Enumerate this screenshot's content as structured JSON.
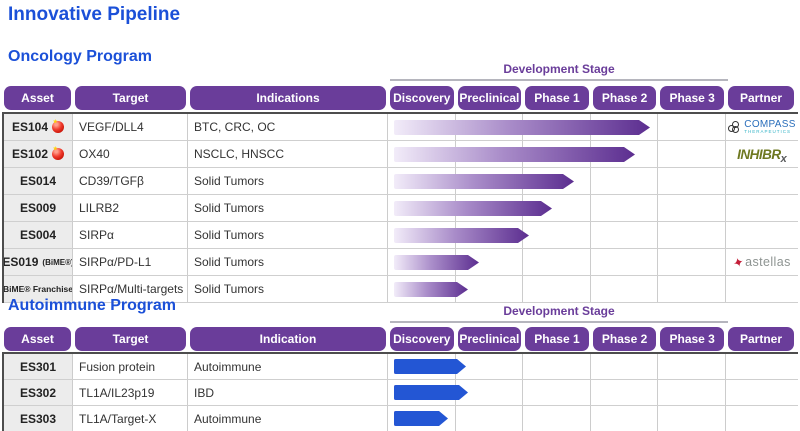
{
  "title": "Innovative Pipeline",
  "colors": {
    "header_purple": "#6a3d9a",
    "title_blue": "#1b50d8",
    "oncology_bar_dark": "#5c2e90",
    "autoimmune_bar_blue": "#2356d4",
    "flag_red": "#e02b1d"
  },
  "stage_unit_note": "progress measured in stage columns from Discovery start: 1=end of Discovery, 2=end of Preclinical, 3=end of Phase 1, 4=end of Phase 2, 5=end of Phase 3",
  "oncology": {
    "section_title": "Oncology Program",
    "dev_stage_label": "Development Stage",
    "info_columns": [
      "Asset",
      "Target",
      "Indications"
    ],
    "stage_columns": [
      "Discovery",
      "Preclinical",
      "Phase 1",
      "Phase 2",
      "Phase 3"
    ],
    "partner_column": "Partner",
    "rows": [
      {
        "asset": "ES104",
        "flag": true,
        "target": "VEGF/DLL4",
        "indication": "BTC, CRC, OC",
        "progress": 3.84,
        "partner": "compass"
      },
      {
        "asset": "ES102",
        "flag": true,
        "target": "OX40",
        "indication": "NSCLC, HNSCC",
        "progress": 3.62,
        "partner": ""
      },
      {
        "asset": "ES014",
        "target": "CD39/TGFβ",
        "indication": "Solid Tumors",
        "progress": 2.72,
        "partner": ""
      },
      {
        "asset": "ES009",
        "target": "LILRB2",
        "indication": "Solid Tumors",
        "progress": 2.39,
        "partner": ""
      },
      {
        "asset": "ES004",
        "target": "SIRPα",
        "indication": "Solid Tumors",
        "progress": 2.06,
        "partner": ""
      },
      {
        "asset": "ES019",
        "asset_note": "(BiME®)",
        "target": "SIRPα/PD-L1",
        "indication": "Solid Tumors",
        "progress": 1.31,
        "partner": "astellas"
      },
      {
        "asset": "BiME® Franchise",
        "small": true,
        "target": "SIRPα/Multi-targets",
        "indication": "Solid Tumors",
        "progress": 1.16,
        "partner": ""
      }
    ],
    "inhibrx_row_index": 1
  },
  "autoimmune": {
    "section_title": "Autoimmune Program",
    "dev_stage_label": "Development Stage",
    "info_columns": [
      "Asset",
      "Target",
      "Indication"
    ],
    "stage_columns": [
      "Discovery",
      "Preclinical",
      "Phase 1",
      "Phase 2",
      "Phase 3"
    ],
    "partner_column": "Partner",
    "rows": [
      {
        "asset": "ES301",
        "target": "Fusion protein",
        "indication": "Autoimmune",
        "progress": 1.13,
        "partner": ""
      },
      {
        "asset": "ES302",
        "target": "TL1A/IL23p19",
        "indication": "IBD",
        "progress": 1.16,
        "partner": ""
      },
      {
        "asset": "ES303",
        "target": "TL1A/Target-X",
        "indication": "Autoimmune",
        "progress": 0.86,
        "partner": ""
      }
    ]
  },
  "partner_logos": {
    "compass": {
      "line1": "COMPASS",
      "line2": "THERAPEUTICS"
    },
    "inhibrx": {
      "text": "INHIBR",
      "sub": "x"
    },
    "astellas": {
      "star": "✦",
      "text": "astellas"
    }
  },
  "chart_data": [
    {
      "type": "bar",
      "title": "Oncology Program",
      "categories": [
        "ES104",
        "ES102",
        "ES014",
        "ES009",
        "ES004",
        "ES019 (BiME®)",
        "BiME® Franchise"
      ],
      "values": [
        3.84,
        3.62,
        2.72,
        2.39,
        2.06,
        1.31,
        1.16
      ],
      "xlabel": "Development Stage",
      "x_tick_labels": [
        "Discovery",
        "Preclinical",
        "Phase 1",
        "Phase 2",
        "Phase 3"
      ],
      "xlim": [
        0,
        5
      ],
      "legend": "off",
      "bar_style": "purple gradient arrow"
    },
    {
      "type": "bar",
      "title": "Autoimmune Program",
      "categories": [
        "ES301",
        "ES302",
        "ES303"
      ],
      "values": [
        1.13,
        1.16,
        0.86
      ],
      "xlabel": "Development Stage",
      "x_tick_labels": [
        "Discovery",
        "Preclinical",
        "Phase 1",
        "Phase 2",
        "Phase 3"
      ],
      "xlim": [
        0,
        5
      ],
      "legend": "off",
      "bar_style": "solid blue arrow"
    }
  ]
}
